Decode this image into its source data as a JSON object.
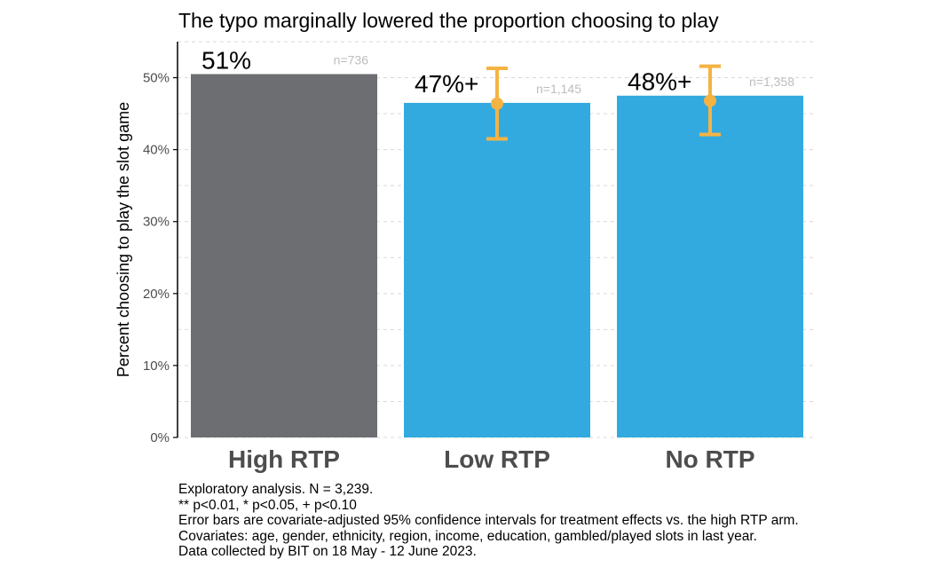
{
  "chart_data": {
    "type": "bar",
    "title": "The typo marginally lowered the proportion choosing to play",
    "xlabel": "",
    "ylabel": "Percent choosing to play the slot game",
    "categories": [
      "High RTP",
      "Low RTP",
      "No RTP"
    ],
    "values": [
      50.5,
      46.5,
      47.5
    ],
    "value_labels": [
      "51%",
      "47%+",
      "48%+"
    ],
    "n_labels": [
      "n=736",
      "n=1,145",
      "n=1,358"
    ],
    "error_bars": [
      null,
      {
        "center": 46.4,
        "low": 41.5,
        "high": 51.3
      },
      {
        "center": 46.8,
        "low": 42.1,
        "high": 51.6
      }
    ],
    "bar_colors": [
      "#6d6e71",
      "#33aadf",
      "#33aadf"
    ],
    "error_bar_color": "#f5b342",
    "ylim": [
      0,
      55
    ],
    "yticks": [
      0,
      10,
      20,
      30,
      40,
      50
    ],
    "ytick_labels": [
      "0%",
      "10%",
      "20%",
      "30%",
      "40%",
      "50%"
    ],
    "grid": "horizontal dashed",
    "legend": "none"
  },
  "notes": [
    "Exploratory analysis. N = 3,239.",
    "** p<0.01, * p<0.05, + p<0.10",
    "Error bars are covariate-adjusted 95% confidence intervals for treatment effects vs. the high RTP arm.",
    "Covariates: age, gender, ethnicity, region, income, education, gambled/played slots in last year.",
    "Data collected by BIT on 18 May - 12 June 2023."
  ]
}
